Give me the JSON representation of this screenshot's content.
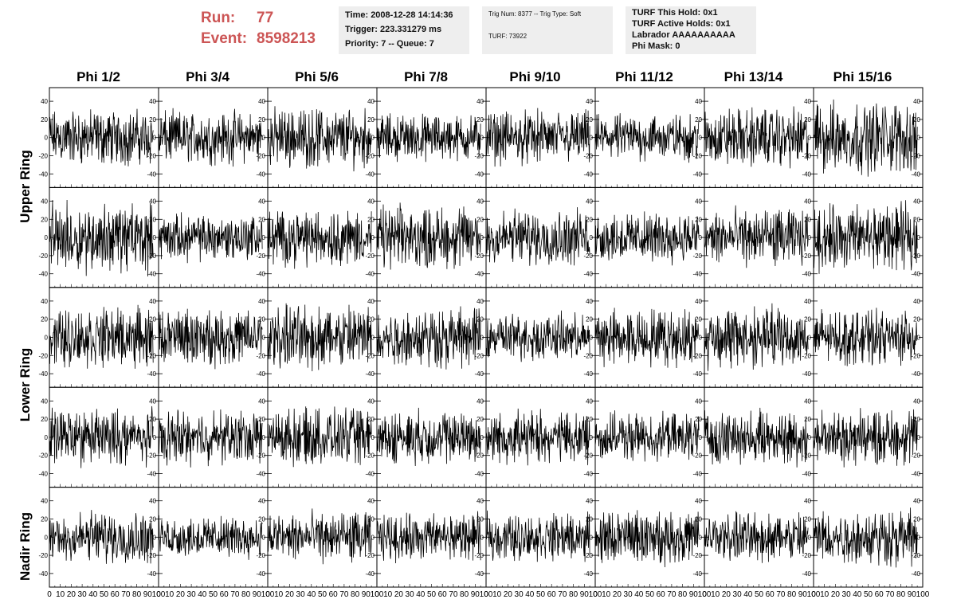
{
  "header": {
    "run_label": "Run:",
    "run_value": "77",
    "event_label": "Event:",
    "event_value": "8598213",
    "time_line": "Time: 2008-12-28 14:14:36",
    "trigger_line": "Trigger: 223.331279 ms",
    "priority_line": "Priority: 7 -- Queue: 7",
    "trig_line": "Trig Num: 8377 -- Trig Type: Soft",
    "turf_line": "TURF: 73922",
    "turf_hold_line": "TURF This Hold: 0x1",
    "turf_active_line": "TURF Active Holds: 0x1",
    "labrador_line": "Labrador AAAAAAAAAA",
    "phi_mask_line": "Phi Mask: 0"
  },
  "chart_data": {
    "type": "line",
    "columns": [
      "Phi 1/2",
      "Phi 3/4",
      "Phi 5/6",
      "Phi 7/8",
      "Phi 9/10",
      "Phi 11/12",
      "Phi 13/14",
      "Phi 15/16"
    ],
    "rows": [
      "Upper Ring",
      "Lower Ring",
      "Nadir Ring"
    ],
    "y_ticks": [
      -40,
      -20,
      0,
      20,
      40
    ],
    "ylim": [
      -55,
      55
    ],
    "x_ticks": [
      0,
      10,
      20,
      30,
      40,
      50,
      60,
      70,
      80,
      90,
      100
    ],
    "xlim": [
      0,
      100
    ],
    "amplitudes": [
      [
        18,
        17,
        19,
        15,
        17,
        15,
        19,
        23
      ],
      [
        22,
        15,
        18,
        20,
        18,
        16,
        18,
        21
      ],
      [
        19,
        18,
        21,
        19,
        15,
        18,
        20,
        17
      ],
      [
        18,
        17,
        18,
        17,
        17,
        15,
        17,
        18
      ],
      [
        17,
        13,
        16,
        15,
        15,
        17,
        16,
        18
      ]
    ]
  }
}
